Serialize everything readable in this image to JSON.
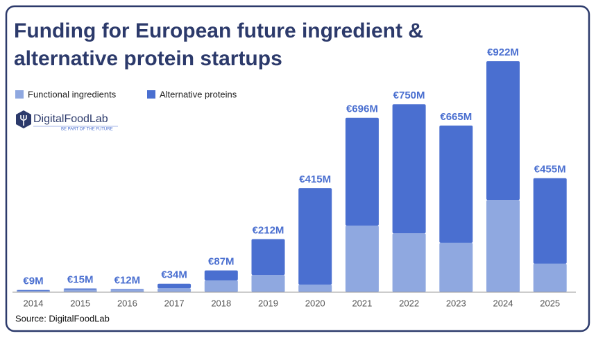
{
  "chart_data": {
    "type": "stacked_bar",
    "title": [
      "Funding for European future ingredient &",
      "alternative protein startups"
    ],
    "logo": {
      "name": "DigitalFoodLab",
      "tagline": "BE PART OF THE FUTURE"
    },
    "source": "Source: DigitalFoodLab",
    "categories": [
      "2014",
      "2015",
      "2016",
      "2017",
      "2018",
      "2019",
      "2020",
      "2021",
      "2022",
      "2023",
      "2024",
      "2025"
    ],
    "series": [
      {
        "name": "Functional ingredients",
        "color": "#8fa8e0",
        "values": [
          6,
          10,
          9,
          16,
          47,
          69,
          30,
          266,
          235,
          197,
          368,
          114
        ]
      },
      {
        "name": "Alternative proteins",
        "color": "#4a6fd0",
        "values": [
          3,
          5,
          3,
          18,
          40,
          143,
          385,
          430,
          515,
          468,
          554,
          341
        ]
      }
    ],
    "totals": {
      "values": [
        9,
        15,
        12,
        34,
        87,
        212,
        415,
        696,
        750,
        665,
        922,
        455
      ],
      "value_labels": [
        "€9M",
        "€15M",
        "€12M",
        "€34M",
        "€87M",
        "€212M",
        "€415M",
        "€696M",
        "€750M",
        "€665M",
        "€922M",
        "€455M"
      ]
    }
  }
}
